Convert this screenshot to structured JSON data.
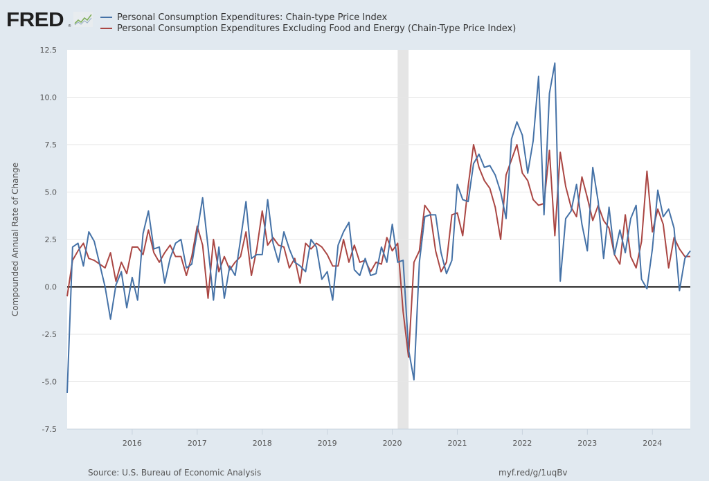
{
  "logo": {
    "text": "FRED",
    "reg": "®"
  },
  "colors": {
    "series1": "#4572a7",
    "series2": "#aa4643",
    "background": "#e1e9f0",
    "plot": "#ffffff",
    "recession": "#e5e5e5",
    "zero_line": "#000000",
    "grid": "#e6e6e6"
  },
  "footer": {
    "source": "Source: U.S. Bureau of Economic Analysis",
    "url": "myf.red/g/1uqBv"
  },
  "chart_data": {
    "type": "line",
    "title": "",
    "xlabel": "",
    "ylabel": "Compounded Annual Rate of Change",
    "ylim": [
      -7.5,
      12.5
    ],
    "yticks": [
      "12.5",
      "10.0",
      "7.5",
      "5.0",
      "2.5",
      "0.0",
      "-2.5",
      "-5.0",
      "-7.5"
    ],
    "ytick_values": [
      12.5,
      10.0,
      7.5,
      5.0,
      2.5,
      0.0,
      -2.5,
      -5.0,
      -7.5
    ],
    "xticks": [
      "2016",
      "2017",
      "2018",
      "2019",
      "2020",
      "2021",
      "2022",
      "2023",
      "2024"
    ],
    "x_start": "2015-01",
    "x_end": "2024-08",
    "frequency": "monthly",
    "grid": true,
    "legend_position": "top",
    "recession_shading": {
      "start": "2020-02",
      "end": "2020-04"
    },
    "series": [
      {
        "name": "Personal Consumption Expenditures: Chain-type Price Index",
        "color": "#4572a7",
        "values": [
          -5.6,
          2.1,
          2.3,
          1.1,
          2.9,
          2.4,
          1.2,
          0.0,
          -1.7,
          0.1,
          0.8,
          -1.1,
          0.5,
          -0.7,
          2.8,
          4.0,
          2.0,
          2.1,
          0.2,
          1.5,
          2.3,
          2.5,
          1.0,
          1.2,
          2.9,
          4.7,
          2.1,
          -0.7,
          2.1,
          -0.6,
          1.1,
          0.6,
          2.5,
          4.5,
          1.5,
          1.7,
          1.7,
          4.6,
          2.3,
          1.3,
          2.9,
          2.0,
          1.3,
          1.1,
          0.8,
          2.5,
          2.1,
          0.4,
          0.8,
          -0.7,
          2.2,
          2.9,
          3.4,
          0.9,
          0.6,
          1.5,
          0.6,
          0.7,
          2.1,
          1.3,
          3.3,
          1.3,
          1.4,
          -3.3,
          -4.9,
          1.3,
          3.7,
          3.8,
          3.8,
          1.8,
          0.7,
          1.4,
          5.4,
          4.6,
          4.5,
          6.5,
          7.0,
          6.3,
          6.4,
          5.9,
          5.0,
          3.6,
          7.8,
          8.7,
          8.0,
          6.0,
          7.7,
          11.1,
          3.8,
          10.2,
          11.8,
          0.3,
          3.6,
          4.0,
          5.4,
          3.3,
          1.9,
          6.3,
          4.5,
          1.5,
          4.2,
          1.7,
          3.0,
          1.8,
          3.6,
          4.3,
          0.4,
          -0.1,
          2.0,
          5.1,
          3.7,
          4.1,
          3.1,
          -0.2,
          1.5,
          1.9
        ]
      },
      {
        "name": "Personal Consumption Expenditures Excluding Food and Energy (Chain-Type Price Index)",
        "color": "#aa4643",
        "values": [
          -0.5,
          1.4,
          1.9,
          2.3,
          1.5,
          1.4,
          1.2,
          1.0,
          1.8,
          0.3,
          1.3,
          0.7,
          2.1,
          2.1,
          1.7,
          3.0,
          1.8,
          1.3,
          1.8,
          2.2,
          1.6,
          1.6,
          0.6,
          1.6,
          3.2,
          2.2,
          -0.6,
          2.5,
          0.8,
          1.6,
          0.9,
          1.3,
          1.6,
          2.9,
          0.6,
          2.0,
          4.0,
          2.2,
          2.6,
          2.2,
          2.1,
          1.0,
          1.5,
          0.2,
          2.3,
          2.0,
          2.3,
          2.1,
          1.7,
          1.1,
          1.1,
          2.5,
          1.3,
          2.2,
          1.3,
          1.4,
          0.8,
          1.3,
          1.2,
          2.6,
          1.9,
          2.3,
          -1.3,
          -3.7,
          1.3,
          1.9,
          4.3,
          3.9,
          1.9,
          0.8,
          1.3,
          3.8,
          3.9,
          2.7,
          5.3,
          7.5,
          6.3,
          5.6,
          5.2,
          4.2,
          2.5,
          5.9,
          6.7,
          7.5,
          6.0,
          5.6,
          4.6,
          4.3,
          4.4,
          7.2,
          2.7,
          7.1,
          5.3,
          4.2,
          3.7,
          5.8,
          4.7,
          3.5,
          4.3,
          3.5,
          3.1,
          1.7,
          1.2,
          3.8,
          1.6,
          1.0,
          2.4,
          6.1,
          2.9,
          4.1,
          3.3,
          1.0,
          2.6,
          2.0,
          1.6,
          1.6
        ]
      }
    ]
  }
}
